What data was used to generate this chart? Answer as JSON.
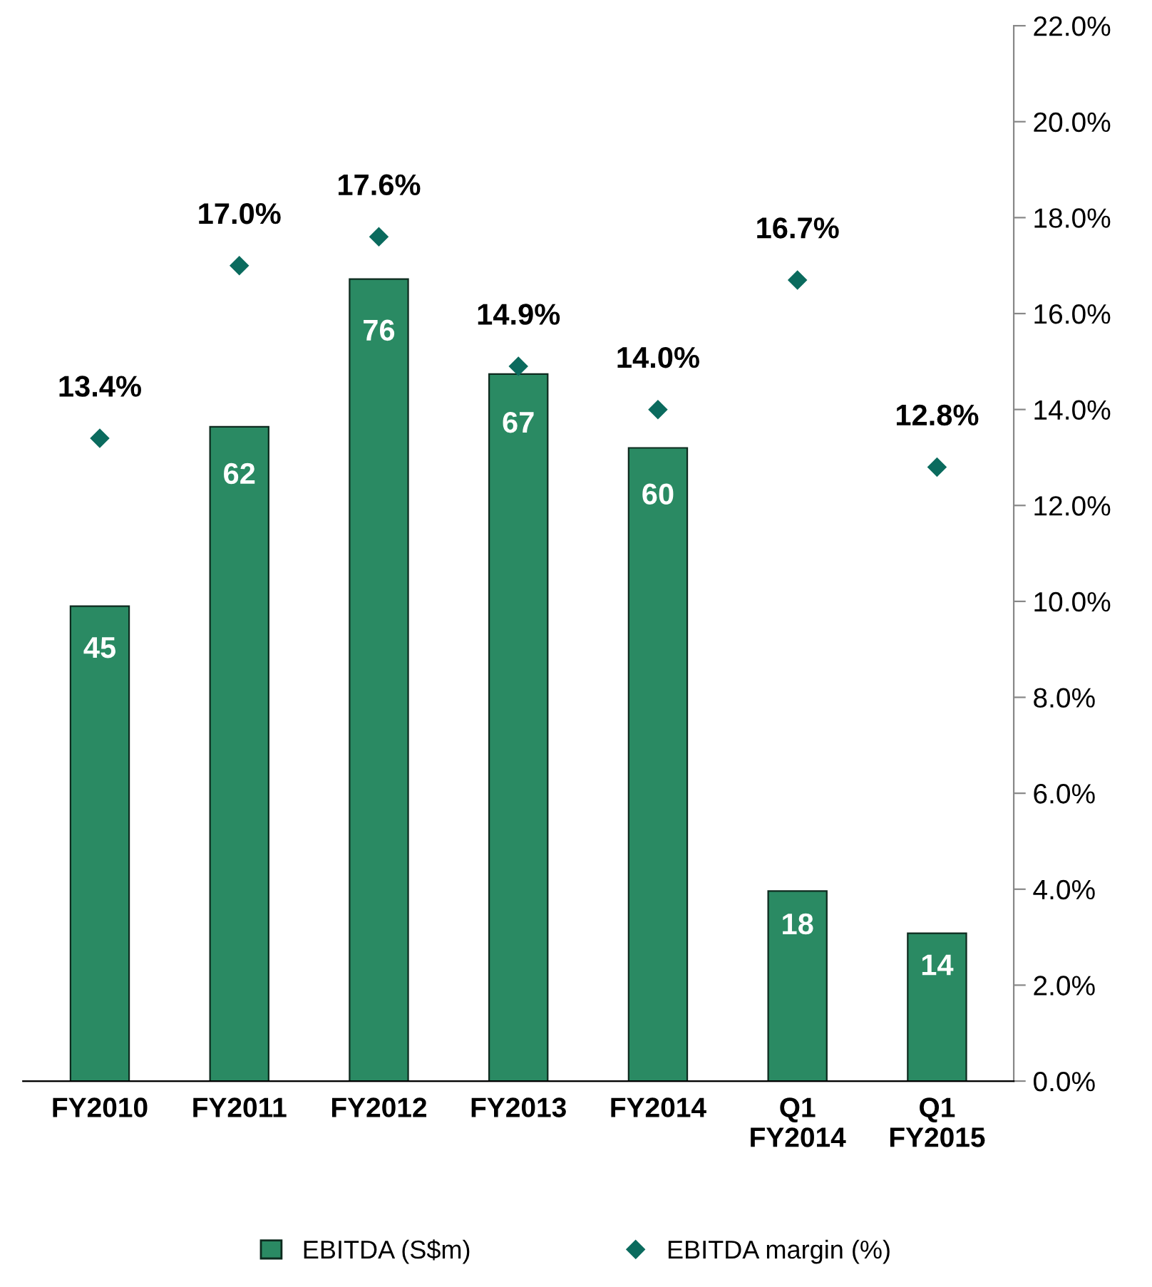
{
  "chart_data": {
    "type": "bar",
    "categories": [
      "FY2010",
      "FY2011",
      "FY2012",
      "FY2013",
      "FY2014",
      "Q1\nFY2014",
      "Q1\nFY2015"
    ],
    "series": [
      {
        "name": "EBITDA (S$m)",
        "color": "#2a8a63",
        "values": [
          45,
          62,
          76,
          67,
          60,
          18,
          14
        ],
        "value_labels": [
          "45",
          "62",
          "76",
          "67",
          "60",
          "18",
          "14"
        ]
      },
      {
        "name": "EBITDA margin (%)",
        "type": "scatter",
        "axis": "y2",
        "color": "#0b6b5e",
        "marker": "diamond",
        "values": [
          13.4,
          17.0,
          17.6,
          14.9,
          14.0,
          16.7,
          12.8
        ],
        "value_labels": [
          "13.4%",
          "17.0%",
          "17.6%",
          "14.9%",
          "14.0%",
          "16.7%",
          "12.8%"
        ]
      }
    ],
    "y2lim": [
      0,
      22
    ],
    "y2ticks": [
      {
        "value": 0,
        "label": "0.0%"
      },
      {
        "value": 2,
        "label": "2.0%"
      },
      {
        "value": 4,
        "label": "4.0%"
      },
      {
        "value": 6,
        "label": "6.0%"
      },
      {
        "value": 8,
        "label": "8.0%"
      },
      {
        "value": 10,
        "label": "10.0%"
      },
      {
        "value": 12,
        "label": "12.0%"
      },
      {
        "value": 14,
        "label": "14.0%"
      },
      {
        "value": 16,
        "label": "16.0%"
      },
      {
        "value": 18,
        "label": "18.0%"
      },
      {
        "value": 20,
        "label": "20.0%"
      },
      {
        "value": 22,
        "label": "22.0%"
      }
    ],
    "ylim": [
      0,
      100
    ],
    "legend": "bottom",
    "grid": false
  }
}
